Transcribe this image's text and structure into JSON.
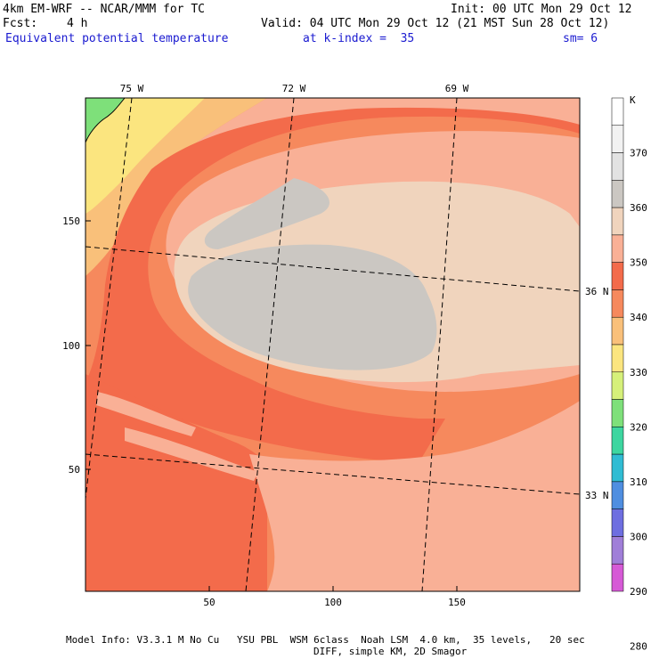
{
  "header": {
    "model_line": "4km EM-WRF -- NCAR/MMM for TC",
    "init_line": "Init: 00 UTC Mon 29 Oct 12",
    "fcst_label": "Fcst:",
    "fcst_value": "4 h",
    "valid_line": "Valid: 04 UTC Mon 29 Oct 12 (21 MST Sun 28 Oct 12)",
    "field_name": "Equivalent potential temperature",
    "level": "at k-index =  35",
    "smoothing": "sm= 6"
  },
  "map": {
    "top_lon_labels": [
      "75 W",
      "72 W",
      "69 W"
    ],
    "right_lat_labels": [
      "36 N",
      "33 N"
    ],
    "y_ticks": [
      "150",
      "100",
      "50"
    ],
    "x_ticks": [
      "50",
      "100",
      "150"
    ]
  },
  "colorbar": {
    "unit": "K",
    "labels": [
      "370",
      "360",
      "350",
      "340",
      "330",
      "320",
      "310",
      "300",
      "290",
      "280"
    ],
    "colors": [
      "#ffffff",
      "#f2f2f2",
      "#e2e2e2",
      "#cbc7c2",
      "#f0d4bd",
      "#f9b096",
      "#f36b4b",
      "#f6895d",
      "#f9c07a",
      "#fbe57f",
      "#d6f07a",
      "#7ee07a",
      "#3dd6a0",
      "#30bcd3",
      "#4f8ee0",
      "#6e6ee0",
      "#a07ed8",
      "#d65ad6"
    ]
  },
  "footer": {
    "line1": "Model Info: V3.3.1 M No Cu   YSU PBL  WSM 6class  Noah LSM  4.0 km,  35 levels,   20 sec",
    "line2": "DIFF, simple KM, 2D Smagor"
  }
}
